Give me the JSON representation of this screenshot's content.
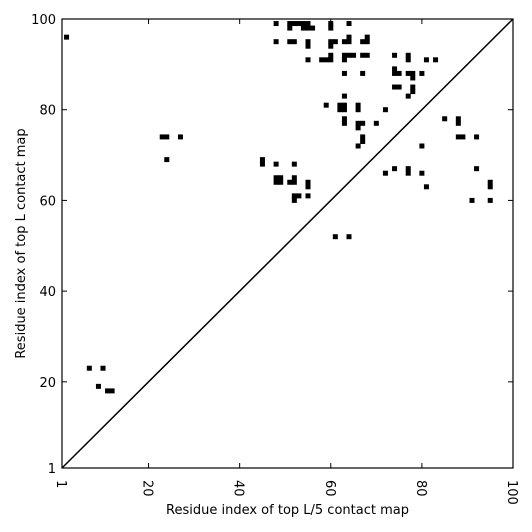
{
  "chart_data": {
    "type": "scatter",
    "xlabel": "Residue index of top L/5 contact map",
    "ylabel": "Residue index of top L contact map",
    "xlim": [
      1,
      100
    ],
    "ylim": [
      1,
      100
    ],
    "xticks": [
      1,
      20,
      40,
      60,
      80,
      100
    ],
    "yticks": [
      1,
      20,
      40,
      60,
      80,
      100
    ],
    "xtick_labels": [
      "1",
      "20",
      "40",
      "60",
      "80",
      "100"
    ],
    "ytick_labels": [
      "1",
      "20",
      "40",
      "60",
      "80",
      "100"
    ],
    "grid": false,
    "diagonal": {
      "from": [
        1,
        1
      ],
      "to": [
        100,
        100
      ]
    },
    "marker_color": "#000000",
    "points": [
      [
        2,
        96
      ],
      [
        7,
        23
      ],
      [
        9,
        19
      ],
      [
        10,
        23
      ],
      [
        11,
        18
      ],
      [
        12,
        18
      ],
      [
        23,
        74
      ],
      [
        24,
        74
      ],
      [
        24,
        69
      ],
      [
        27,
        74
      ],
      [
        45,
        69
      ],
      [
        45,
        68
      ],
      [
        48,
        68
      ],
      [
        48,
        65
      ],
      [
        49,
        65
      ],
      [
        48,
        64
      ],
      [
        49,
        64
      ],
      [
        51,
        64
      ],
      [
        52,
        64
      ],
      [
        52,
        65
      ],
      [
        52,
        68
      ],
      [
        52,
        61
      ],
      [
        52,
        60
      ],
      [
        53,
        61
      ],
      [
        55,
        64
      ],
      [
        55,
        63
      ],
      [
        55,
        61
      ],
      [
        48,
        99
      ],
      [
        48,
        95
      ],
      [
        51,
        99
      ],
      [
        51,
        98
      ],
      [
        52,
        99
      ],
      [
        51,
        95
      ],
      [
        52,
        95
      ],
      [
        53,
        99
      ],
      [
        54,
        99
      ],
      [
        54,
        98
      ],
      [
        55,
        99
      ],
      [
        55,
        98
      ],
      [
        56,
        98
      ],
      [
        55,
        95
      ],
      [
        55,
        94
      ],
      [
        55,
        91
      ],
      [
        58,
        91
      ],
      [
        59,
        91
      ],
      [
        60,
        91
      ],
      [
        60,
        92
      ],
      [
        60,
        94
      ],
      [
        60,
        95
      ],
      [
        61,
        95
      ],
      [
        60,
        98
      ],
      [
        60,
        99
      ],
      [
        61,
        52
      ],
      [
        64,
        52
      ],
      [
        59,
        81
      ],
      [
        62,
        81
      ],
      [
        62,
        80
      ],
      [
        63,
        81
      ],
      [
        63,
        80
      ],
      [
        63,
        83
      ],
      [
        63,
        78
      ],
      [
        63,
        77
      ],
      [
        63,
        88
      ],
      [
        63,
        91
      ],
      [
        63,
        92
      ],
      [
        64,
        92
      ],
      [
        65,
        92
      ],
      [
        63,
        95
      ],
      [
        64,
        95
      ],
      [
        64,
        96
      ],
      [
        64,
        99
      ],
      [
        66,
        81
      ],
      [
        66,
        80
      ],
      [
        66,
        77
      ],
      [
        66,
        76
      ],
      [
        67,
        77
      ],
      [
        66,
        72
      ],
      [
        67,
        74
      ],
      [
        67,
        73
      ],
      [
        70,
        77
      ],
      [
        67,
        88
      ],
      [
        67,
        92
      ],
      [
        68,
        92
      ],
      [
        67,
        95
      ],
      [
        68,
        95
      ],
      [
        68,
        96
      ],
      [
        72,
        80
      ],
      [
        72,
        66
      ],
      [
        74,
        92
      ],
      [
        74,
        89
      ],
      [
        74,
        88
      ],
      [
        75,
        88
      ],
      [
        74,
        85
      ],
      [
        75,
        85
      ],
      [
        74,
        67
      ],
      [
        77,
        92
      ],
      [
        77,
        91
      ],
      [
        77,
        88
      ],
      [
        78,
        88
      ],
      [
        78,
        87
      ],
      [
        77,
        83
      ],
      [
        78,
        85
      ],
      [
        78,
        84
      ],
      [
        77,
        67
      ],
      [
        77,
        66
      ],
      [
        80,
        88
      ],
      [
        80,
        72
      ],
      [
        80,
        66
      ],
      [
        81,
        63
      ],
      [
        81,
        91
      ],
      [
        83,
        91
      ],
      [
        85,
        78
      ],
      [
        88,
        78
      ],
      [
        88,
        77
      ],
      [
        88,
        74
      ],
      [
        89,
        74
      ],
      [
        92,
        74
      ],
      [
        91,
        60
      ],
      [
        92,
        67
      ],
      [
        95,
        64
      ],
      [
        95,
        63
      ],
      [
        95,
        60
      ]
    ]
  }
}
